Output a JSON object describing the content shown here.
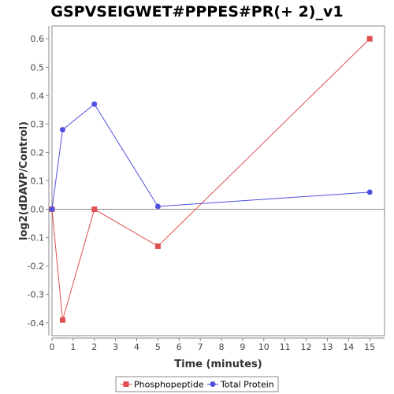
{
  "chart_data": {
    "type": "line",
    "title": "GSPVSEIGWET#PPPES#PR(+ 2)_v1",
    "xlabel": "Time (minutes)",
    "ylabel": "log2(dDAVP/Control)",
    "xlim": [
      0,
      15.7
    ],
    "ylim": [
      -0.445,
      0.645
    ],
    "x_ticks": [
      "0",
      "1",
      "2",
      "3",
      "4",
      "5",
      "6",
      "7",
      "8",
      "9",
      "10",
      "11",
      "12",
      "13",
      "14",
      "15"
    ],
    "y_ticks": [
      "-0.4",
      "-0.3",
      "-0.2",
      "-0.1",
      "0.0",
      "0.1",
      "0.2",
      "0.3",
      "0.4",
      "0.5",
      "0.6"
    ],
    "legend_position": "bottom",
    "series": [
      {
        "name": "Phosphopeptide",
        "color": "#e05050",
        "marker": "square",
        "x": [
          0,
          0.5,
          2,
          5,
          15
        ],
        "y": [
          0.0,
          -0.39,
          0.0,
          -0.13,
          0.6
        ]
      },
      {
        "name": "Total Protein",
        "color": "#5050e0",
        "marker": "circle",
        "x": [
          0,
          0.5,
          2,
          5,
          15
        ],
        "y": [
          0.0,
          0.28,
          0.37,
          0.01,
          0.06
        ]
      }
    ]
  }
}
